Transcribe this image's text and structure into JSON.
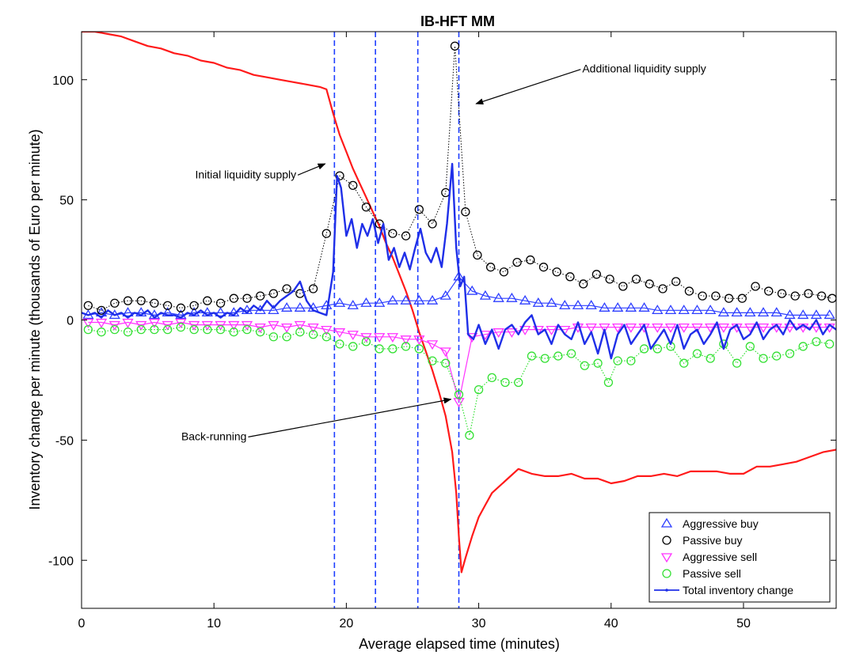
{
  "chart_data": {
    "type": "line",
    "title": "IB-HFT MM",
    "xlabel": "Average elapsed time (minutes)",
    "ylabel": "Inventory change per minute (thousands of Euro per minute)",
    "xlim": [
      0,
      57
    ],
    "ylim": [
      -120,
      120
    ],
    "xticks": [
      0,
      10,
      20,
      30,
      40,
      50
    ],
    "yticks": [
      -100,
      -50,
      0,
      50,
      100
    ],
    "grid": false,
    "legend_position": "bottom-right",
    "vlines": [
      19.1,
      22.2,
      25.4,
      28.5
    ],
    "annotations": [
      {
        "text": "Initial liquidity supply",
        "x": 12.4,
        "y": 59,
        "arrow_to": [
          18.4,
          65
        ]
      },
      {
        "text": "Additional liquidity supply",
        "x": 42.5,
        "y": 103,
        "arrow_to": [
          29.8,
          90
        ]
      },
      {
        "text": "Back-running",
        "x": 10.0,
        "y": -50,
        "arrow_to": [
          27.9,
          -33
        ]
      }
    ],
    "series": [
      {
        "name": "Aggressive buy",
        "color": "#2e3fff",
        "marker": "triangle-up",
        "x": [
          0.5,
          1.5,
          2.5,
          3.5,
          4.5,
          5.5,
          6.5,
          7.5,
          8.5,
          9.5,
          10.5,
          11.5,
          12.5,
          13.5,
          14.5,
          15.5,
          16.5,
          17.5,
          18.5,
          19.5,
          20.5,
          21.5,
          22.5,
          23.5,
          24.5,
          25.5,
          26.5,
          27.5,
          28.5,
          29.5,
          30.5,
          31.5,
          32.5,
          33.5,
          34.5,
          35.5,
          36.5,
          37.5,
          38.5,
          39.5,
          40.5,
          41.5,
          42.5,
          43.5,
          44.5,
          45.5,
          46.5,
          47.5,
          48.5,
          49.5,
          50.5,
          51.5,
          52.5,
          53.5,
          54.5,
          55.5,
          56.5
        ],
        "y": [
          2,
          3,
          2,
          3,
          3,
          2,
          3,
          2,
          3,
          3,
          3,
          3,
          4,
          4,
          4,
          5,
          5,
          5,
          6,
          7,
          6,
          7,
          7,
          8,
          8,
          8,
          8,
          10,
          18,
          12,
          10,
          9,
          9,
          8,
          7,
          7,
          6,
          6,
          6,
          5,
          5,
          5,
          5,
          4,
          4,
          4,
          4,
          4,
          3,
          3,
          3,
          3,
          3,
          2,
          2,
          2,
          2
        ]
      },
      {
        "name": "Passive buy",
        "color": "#000000",
        "marker": "circle",
        "x": [
          0.5,
          1.5,
          2.5,
          3.5,
          4.5,
          5.5,
          6.5,
          7.5,
          8.5,
          9.5,
          10.5,
          11.5,
          12.5,
          13.5,
          14.5,
          15.5,
          16.5,
          17.5,
          18.5,
          19.5,
          20.5,
          21.5,
          22.5,
          23.5,
          24.5,
          25.5,
          26.5,
          27.5,
          28.2,
          29.0,
          29.9,
          30.9,
          31.9,
          32.9,
          33.9,
          34.9,
          35.9,
          36.9,
          37.9,
          38.9,
          39.9,
          40.9,
          41.9,
          42.9,
          43.9,
          44.9,
          45.9,
          46.9,
          47.9,
          48.9,
          49.9,
          50.9,
          51.9,
          52.9,
          53.9,
          54.9,
          55.9,
          56.7
        ],
        "y": [
          6,
          4,
          7,
          8,
          8,
          7,
          6,
          5,
          6,
          8,
          7,
          9,
          9,
          10,
          11,
          13,
          11,
          13,
          36,
          60,
          56,
          47,
          40,
          36,
          35,
          46,
          40,
          53,
          114,
          45,
          27,
          22,
          20,
          24,
          25,
          22,
          20,
          18,
          15,
          19,
          17,
          14,
          17,
          15,
          13,
          16,
          12,
          10,
          10,
          9,
          9,
          14,
          12,
          11,
          10,
          11,
          10,
          9
        ]
      },
      {
        "name": "Aggressive sell",
        "color": "#ff33ff",
        "marker": "triangle-down",
        "x": [
          0.5,
          1.5,
          2.5,
          3.5,
          4.5,
          5.5,
          6.5,
          7.5,
          8.5,
          9.5,
          10.5,
          11.5,
          12.5,
          13.5,
          14.5,
          15.5,
          16.5,
          17.5,
          18.5,
          19.5,
          20.5,
          21.5,
          22.5,
          23.5,
          24.5,
          25.5,
          26.5,
          27.5,
          28.5,
          29.5,
          30.5,
          31.5,
          32.5,
          33.5,
          34.5,
          35.5,
          36.5,
          37.5,
          38.5,
          39.5,
          40.5,
          41.5,
          42.5,
          43.5,
          44.5,
          45.5,
          46.5,
          47.5,
          48.5,
          49.5,
          50.5,
          51.5,
          52.5,
          53.5,
          54.5,
          55.5,
          56.5
        ],
        "y": [
          -1,
          -1,
          -2,
          -1,
          -2,
          -1,
          -2,
          -1,
          -2,
          -2,
          -2,
          -2,
          -2,
          -3,
          -2,
          -3,
          -2,
          -3,
          -4,
          -5,
          -6,
          -7,
          -7,
          -7,
          -8,
          -8,
          -10,
          -13,
          -34,
          -7,
          -6,
          -5,
          -5,
          -4,
          -4,
          -4,
          -4,
          -3,
          -3,
          -3,
          -3,
          -3,
          -3,
          -3,
          -3,
          -3,
          -3,
          -3,
          -3,
          -3,
          -3,
          -3,
          -3,
          -3,
          -3,
          -3,
          -3
        ]
      },
      {
        "name": "Passive sell",
        "color": "#33e033",
        "marker": "circle",
        "x": [
          0.5,
          1.5,
          2.5,
          3.5,
          4.5,
          5.5,
          6.5,
          7.5,
          8.5,
          9.5,
          10.5,
          11.5,
          12.5,
          13.5,
          14.5,
          15.5,
          16.5,
          17.5,
          18.5,
          19.5,
          20.5,
          21.5,
          22.5,
          23.5,
          24.5,
          25.5,
          26.5,
          27.5,
          28.5,
          29.3,
          30.0,
          31.0,
          32.0,
          33.0,
          34.0,
          35.0,
          36.0,
          37.0,
          38.0,
          39.0,
          39.8,
          40.5,
          41.5,
          42.5,
          43.5,
          44.5,
          45.5,
          46.5,
          47.5,
          48.5,
          49.5,
          50.5,
          51.5,
          52.5,
          53.5,
          54.5,
          55.5,
          56.5
        ],
        "y": [
          -4,
          -5,
          -4,
          -5,
          -4,
          -4,
          -4,
          -3,
          -4,
          -4,
          -4,
          -5,
          -4,
          -5,
          -7,
          -7,
          -5,
          -6,
          -7,
          -10,
          -11,
          -9,
          -12,
          -12,
          -11,
          -12,
          -17,
          -18,
          -31,
          -48,
          -29,
          -24,
          -26,
          -26,
          -15,
          -16,
          -15,
          -14,
          -19,
          -18,
          -26,
          -17,
          -17,
          -12,
          -12,
          -11,
          -18,
          -14,
          -16,
          -10,
          -18,
          -11,
          -16,
          -15,
          -14,
          -11,
          -9,
          -10
        ]
      },
      {
        "name": "Total inventory change",
        "color": "#1f2fe8",
        "marker": "point",
        "x": [
          0,
          0.5,
          1.0,
          1.5,
          2.0,
          2.5,
          3.0,
          3.5,
          4.0,
          4.5,
          5.0,
          5.5,
          6.0,
          6.5,
          7.0,
          7.5,
          8.0,
          8.5,
          9.0,
          9.5,
          10.0,
          10.5,
          11.0,
          11.5,
          12.0,
          12.5,
          13.0,
          13.5,
          14.0,
          14.5,
          15.0,
          15.5,
          16.0,
          16.5,
          17.0,
          17.5,
          18.0,
          18.5,
          19.0,
          19.3,
          19.6,
          20.0,
          20.4,
          20.8,
          21.2,
          21.6,
          22.0,
          22.4,
          22.8,
          23.2,
          23.6,
          24.0,
          24.4,
          24.8,
          25.2,
          25.6,
          26.0,
          26.4,
          26.8,
          27.2,
          27.6,
          28.0,
          28.3,
          28.6,
          28.9,
          29.2,
          29.6,
          30.0,
          30.5,
          31.0,
          31.5,
          32.0,
          32.5,
          33.0,
          33.5,
          34.0,
          34.5,
          35.0,
          35.5,
          36.0,
          36.5,
          37.0,
          37.5,
          38.0,
          38.5,
          39.0,
          39.5,
          40.0,
          40.5,
          41.0,
          41.5,
          42.0,
          42.5,
          43.0,
          43.5,
          44.0,
          44.5,
          45.0,
          45.5,
          46.0,
          46.5,
          47.0,
          47.5,
          48.0,
          48.5,
          49.0,
          49.5,
          50.0,
          50.5,
          51.0,
          51.5,
          52.0,
          52.5,
          53.0,
          53.5,
          54.0,
          54.5,
          55.0,
          55.5,
          56.0,
          56.5,
          57.0
        ],
        "y": [
          3,
          2,
          3,
          1,
          4,
          2,
          3,
          1,
          3,
          2,
          4,
          1,
          3,
          2,
          2,
          1,
          3,
          2,
          4,
          2,
          3,
          1,
          3,
          2,
          5,
          3,
          6,
          4,
          8,
          5,
          8,
          10,
          12,
          16,
          8,
          4,
          3,
          2,
          20,
          60,
          55,
          35,
          42,
          30,
          40,
          35,
          42,
          32,
          40,
          25,
          30,
          22,
          28,
          21,
          30,
          38,
          28,
          24,
          30,
          22,
          40,
          65,
          30,
          14,
          18,
          -6,
          -8,
          -2,
          -10,
          -4,
          -12,
          -4,
          -2,
          -6,
          -1,
          2,
          -6,
          -4,
          -10,
          -2,
          -6,
          -8,
          -1,
          -10,
          -5,
          -14,
          -4,
          -16,
          -6,
          -2,
          -10,
          -6,
          -2,
          -12,
          -8,
          -4,
          -10,
          -2,
          -12,
          -6,
          -4,
          -10,
          -6,
          -1,
          -12,
          -4,
          -2,
          -8,
          -6,
          -1,
          -8,
          -4,
          -2,
          -6,
          0,
          -4,
          -2,
          -4,
          0,
          -6,
          -2,
          -4
        ]
      },
      {
        "name": "",
        "color": "#ff1a1a",
        "marker": "none",
        "x": [
          0,
          1,
          2,
          3,
          4,
          5,
          6,
          7,
          8,
          9,
          10,
          11,
          12,
          13,
          14,
          15,
          16,
          17,
          18,
          18.5,
          19.0,
          19.5,
          20.0,
          20.5,
          21.0,
          21.5,
          22.0,
          22.5,
          23.0,
          23.5,
          24.0,
          24.5,
          25.0,
          25.5,
          26.0,
          26.5,
          27.0,
          27.5,
          28.0,
          28.3,
          28.5,
          28.7,
          29.0,
          29.5,
          30.0,
          30.5,
          31.0,
          32.0,
          33.0,
          34.0,
          35.0,
          36.0,
          37.0,
          38.0,
          39.0,
          40.0,
          41.0,
          42.0,
          43.0,
          44.0,
          45.0,
          46.0,
          47.0,
          48.0,
          49.0,
          50.0,
          51.0,
          52.0,
          53.0,
          54.0,
          55.0,
          56.0,
          57.0
        ],
        "y": [
          120,
          120,
          119,
          118,
          116,
          114,
          113,
          111,
          110,
          108,
          107,
          105,
          104,
          102,
          101,
          100,
          99,
          98,
          97,
          96,
          86,
          77,
          70,
          63,
          57,
          51,
          45,
          39,
          32,
          26,
          19,
          12,
          4,
          -5,
          -13,
          -21,
          -30,
          -40,
          -55,
          -72,
          -90,
          -105,
          -99,
          -90,
          -82,
          -77,
          -72,
          -67,
          -62,
          -64,
          -65,
          -65,
          -64,
          -66,
          -66,
          -68,
          -67,
          -65,
          -65,
          -64,
          -65,
          -63,
          -63,
          -63,
          -64,
          -64,
          -61,
          -61,
          -60,
          -59,
          -57,
          -55,
          -54
        ]
      }
    ]
  }
}
